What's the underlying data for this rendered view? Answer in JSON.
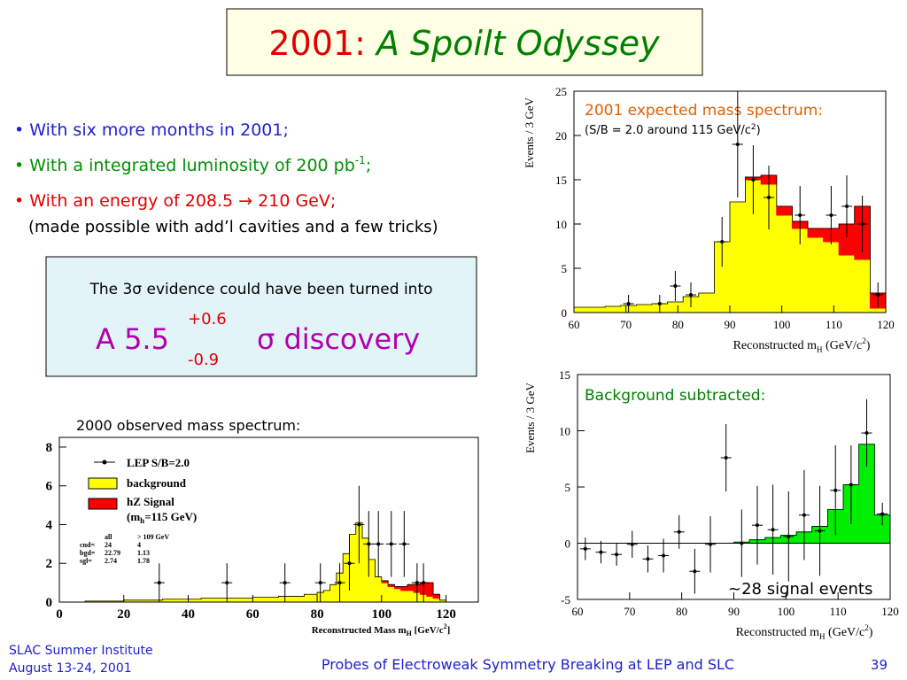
{
  "title": {
    "year": "2001:",
    "text": "A Spoilt Odyssey"
  },
  "bullets": [
    {
      "parts": [
        "• With six more months in 2001;"
      ]
    },
    {
      "parts": [
        "• With a integrated luminosity of 200 pb",
        "-1",
        ";"
      ]
    },
    {
      "parts": [
        "• With an energy of 208.5 → 210 GeV;"
      ]
    }
  ],
  "note": "(made possible with add’l cavities and a few tricks)",
  "box": {
    "line": "The 3σ evidence could have been turned into",
    "main": "A 5.5",
    "up": "+0.6",
    "down": "-0.9",
    "tail": "σ discovery"
  },
  "footer": {
    "left": [
      "SLAC Summer Institute",
      "August 13-24, 2001"
    ],
    "center": "Probes of Electroweak Symmetry Breaking at LEP and SLC",
    "page": 39
  },
  "chart_data": [
    {
      "type": "histogram",
      "title": "2001 expected mass spectrum:",
      "subtitle": [
        "(S/B = 2.0 around 115 GeV/c",
        "2",
        ")"
      ],
      "ylabel": "Events / 3 GeV",
      "xlabel": [
        "Reconstructed m",
        "H",
        " (GeV/c",
        "2",
        ")"
      ],
      "xlim": [
        60,
        120
      ],
      "xticks": [
        60,
        70,
        80,
        90,
        100,
        110,
        120
      ],
      "ylim": [
        0,
        25
      ],
      "yticks": [
        0,
        5,
        10,
        15,
        20,
        25
      ],
      "bins": [
        60,
        63,
        66,
        69,
        72,
        75,
        78,
        81,
        84,
        87,
        90,
        93,
        96,
        99,
        102,
        105,
        108,
        111,
        114,
        117,
        120
      ],
      "series": [
        {
          "color": "#ffff00",
          "values": [
            0.6,
            0.6,
            0.7,
            0.8,
            0.9,
            1.0,
            1.2,
            1.8,
            2.2,
            8,
            12.5,
            15,
            14.5,
            11,
            9.5,
            8.5,
            8,
            6.5,
            6,
            0.5
          ]
        },
        {
          "color": "#ff0000",
          "values": [
            0,
            0,
            0,
            0,
            0,
            0,
            0,
            0,
            0,
            0,
            0,
            0.3,
            1,
            1,
            0.8,
            1,
            1.5,
            3.5,
            6,
            1.7
          ]
        }
      ],
      "points": {
        "x": [
          70.5,
          76.5,
          79.5,
          82.5,
          88.5,
          91.5,
          94.5,
          97.5,
          103.5,
          109.5,
          112.5,
          115.5,
          118.5
        ],
        "values": [
          1,
          1,
          3,
          2,
          8,
          19,
          15,
          13,
          11,
          11,
          12,
          10,
          2
        ],
        "errors": [
          1,
          1,
          1.7,
          1.4,
          2.8,
          6,
          3.9,
          3.6,
          3.3,
          3.3,
          3.5,
          3.2,
          1.4
        ]
      }
    },
    {
      "type": "histogram",
      "title": "Background subtracted:",
      "annotation": "~28 signal events",
      "ylabel": "Events / 3 GeV",
      "xlabel": [
        "Reconstructed m",
        "H",
        " (GeV/c",
        "2",
        ")"
      ],
      "xlim": [
        60,
        120
      ],
      "xticks": [
        60,
        70,
        80,
        90,
        100,
        110,
        120
      ],
      "ylim": [
        -5,
        15
      ],
      "yticks": [
        -5,
        0,
        5,
        10,
        15
      ],
      "bins": [
        60,
        63,
        66,
        69,
        72,
        75,
        78,
        81,
        84,
        87,
        90,
        93,
        96,
        99,
        102,
        105,
        108,
        111,
        114,
        117,
        120
      ],
      "series": [
        {
          "color": "#00ee00",
          "values": [
            0,
            0,
            0,
            0,
            0,
            0,
            0,
            0,
            0,
            0,
            0.1,
            0.3,
            0.5,
            0.7,
            1.0,
            1.5,
            3.0,
            5.2,
            8.8,
            2.5
          ]
        }
      ],
      "points": {
        "x": [
          61.5,
          64.5,
          67.5,
          70.5,
          73.5,
          76.5,
          79.5,
          82.5,
          85.5,
          88.5,
          91.5,
          94.5,
          97.5,
          100.5,
          103.5,
          106.5,
          109.5,
          112.5,
          115.5,
          118.5
        ],
        "values": [
          -0.5,
          -0.8,
          -1,
          -0.1,
          -1.4,
          -1.1,
          1,
          -2.5,
          -0.1,
          7.6,
          0,
          1.6,
          1.2,
          0.6,
          2.5,
          1.1,
          4.7,
          5.2,
          9.8,
          2.6
        ],
        "errors": [
          1,
          1,
          1,
          1.2,
          1.2,
          1.5,
          1.5,
          2,
          2.5,
          3,
          3,
          3.5,
          4,
          4,
          4,
          4,
          4,
          3.5,
          3,
          1
        ]
      }
    },
    {
      "type": "histogram",
      "title": "2000 observed mass spectrum:",
      "xlabel": [
        "Reconstructed Mass m",
        "H",
        " [GeV/c",
        "2",
        "]"
      ],
      "xlim": [
        0,
        130
      ],
      "xticks": [
        0,
        20,
        40,
        60,
        80,
        100,
        120
      ],
      "ylim": [
        0,
        8.5
      ],
      "yticks": [
        0,
        2,
        4,
        6,
        8
      ],
      "bins": [
        0,
        4,
        8,
        12,
        16,
        20,
        24,
        28,
        32,
        36,
        40,
        44,
        48,
        52,
        56,
        60,
        64,
        68,
        72,
        76,
        80,
        82,
        84,
        86,
        88,
        90,
        92,
        94,
        96,
        98,
        100,
        102,
        104,
        106,
        108,
        110,
        112,
        114,
        116,
        118,
        120
      ],
      "series": [
        {
          "name": "background",
          "color": "#ffff00",
          "values": [
            0,
            0,
            0.05,
            0.05,
            0.05,
            0.1,
            0.1,
            0.1,
            0.15,
            0.15,
            0.15,
            0.2,
            0.2,
            0.2,
            0.2,
            0.25,
            0.25,
            0.3,
            0.3,
            0.4,
            0.5,
            0.6,
            0.9,
            1.5,
            2.5,
            3.5,
            4.1,
            3.3,
            2.2,
            1.3,
            1.0,
            0.8,
            0.7,
            0.6,
            0.6,
            0.5,
            0.4,
            0.3,
            0.2,
            0.1
          ]
        },
        {
          "name": "hZ Signal",
          "color": "#ff0000",
          "values": [
            0,
            0,
            0,
            0,
            0,
            0,
            0,
            0,
            0,
            0,
            0,
            0,
            0,
            0,
            0,
            0,
            0,
            0,
            0,
            0,
            0,
            0,
            0,
            0,
            0,
            0,
            0,
            0,
            0,
            0,
            0.1,
            0.1,
            0.1,
            0.2,
            0.3,
            0.4,
            0.6,
            0.7,
            0.2,
            0
          ]
        }
      ],
      "points": {
        "name": "LEP S/B=2.0",
        "x": [
          31,
          52,
          70,
          81,
          87,
          90,
          93,
          96,
          99,
          103,
          107,
          111,
          113
        ],
        "values": [
          1,
          1,
          1,
          1,
          1,
          2,
          4,
          3,
          3,
          3,
          3,
          1,
          1
        ],
        "errors": [
          1,
          1,
          1,
          1,
          1,
          1.4,
          2,
          1.7,
          1.7,
          1.7,
          1.7,
          1,
          1
        ]
      },
      "legend_note": [
        "(m",
        "h",
        "=115 GeV)"
      ],
      "stats": {
        "header": [
          "all",
          "> 109 GeV"
        ],
        "rows": [
          {
            "label": "cnd=",
            "values": [
              24,
              4
            ]
          },
          {
            "label": "bgd=",
            "values": [
              22.79,
              1.13
            ]
          },
          {
            "label": "sgl=",
            "values": [
              2.74,
              1.78
            ]
          }
        ]
      }
    }
  ]
}
